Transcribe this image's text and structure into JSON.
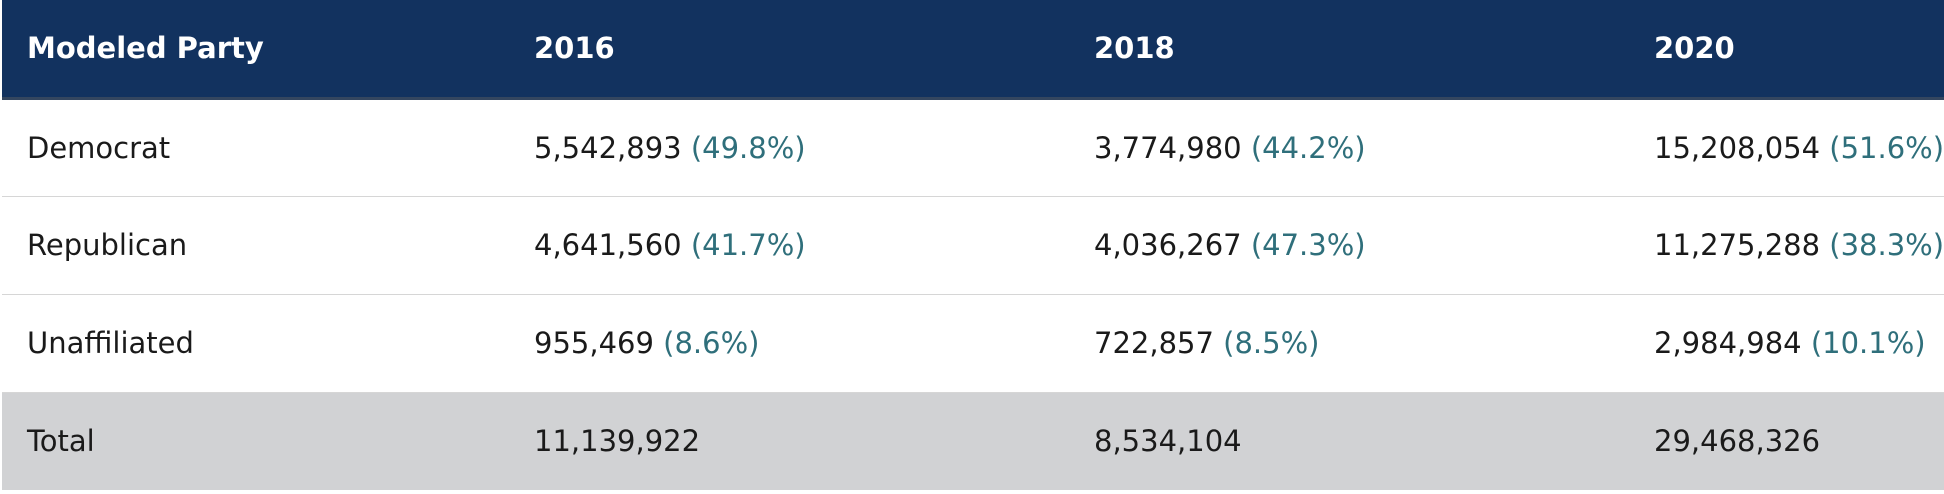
{
  "table": {
    "headers": [
      "Modeled Party",
      "2016",
      "2018",
      "2020"
    ],
    "rows": [
      {
        "party": "Democrat",
        "cells": [
          {
            "count": "5,542,893",
            "pct": "(49.8%)"
          },
          {
            "count": "3,774,980",
            "pct": "(44.2%)"
          },
          {
            "count": "15,208,054",
            "pct": "(51.6%)"
          }
        ]
      },
      {
        "party": "Republican",
        "cells": [
          {
            "count": "4,641,560",
            "pct": "(41.7%)"
          },
          {
            "count": "4,036,267",
            "pct": "(47.3%)"
          },
          {
            "count": "11,275,288",
            "pct": "(38.3%)"
          }
        ]
      },
      {
        "party": "Unaffiliated",
        "cells": [
          {
            "count": "955,469",
            "pct": "(8.6%)"
          },
          {
            "count": "722,857",
            "pct": "(8.5%)"
          },
          {
            "count": "2,984,984",
            "pct": "(10.1%)"
          }
        ]
      }
    ],
    "total": {
      "label": "Total",
      "values": [
        "11,139,922",
        "8,534,104",
        "29,468,326"
      ]
    }
  },
  "colors": {
    "header_bg": "#12325f",
    "header_text": "#ffffff",
    "percent_text": "#2f6f7b",
    "total_bg": "#d1d2d4"
  }
}
